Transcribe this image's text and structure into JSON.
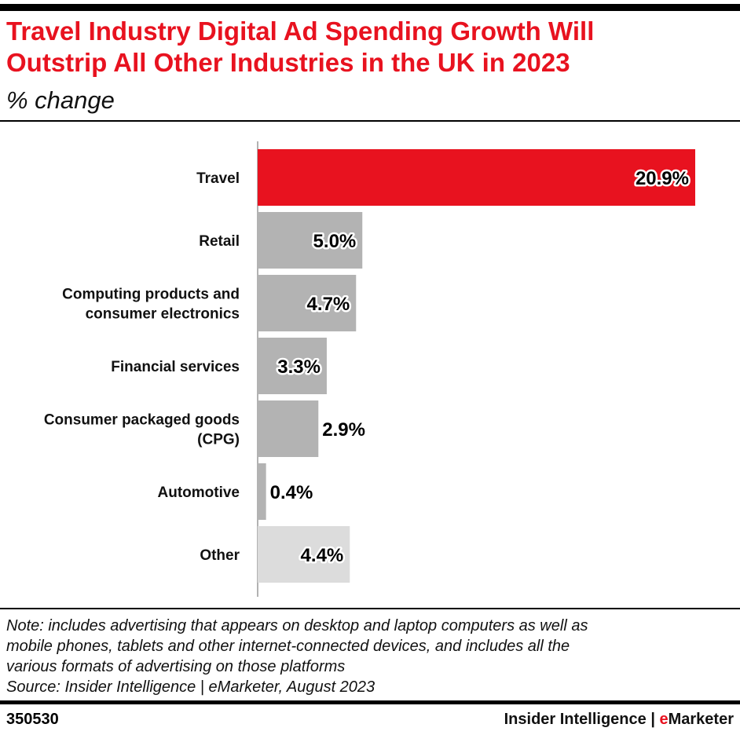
{
  "header": {
    "title_line1": "Travel Industry Digital Ad Spending Growth Will",
    "title_line2": "Outstrip All Other Industries in the UK in 2023",
    "subtitle": "% change"
  },
  "chart_data": {
    "type": "bar",
    "orientation": "horizontal",
    "title": "Travel Industry Digital Ad Spending Growth Will Outstrip All Other Industries in the UK in 2023",
    "subtitle": "% change",
    "categories": [
      [
        "Travel"
      ],
      [
        "Retail"
      ],
      [
        "Computing products and",
        "consumer electronics"
      ],
      [
        "Financial services"
      ],
      [
        "Consumer packaged goods",
        "(CPG)"
      ],
      [
        "Automotive"
      ],
      [
        "Other"
      ]
    ],
    "values": [
      20.9,
      5.0,
      4.7,
      3.3,
      2.9,
      0.4,
      4.4
    ],
    "value_labels": [
      "20.9%",
      "5.0%",
      "4.7%",
      "3.3%",
      "2.9%",
      "0.4%",
      "4.4%"
    ],
    "colors": [
      "#e8121f",
      "#b3b3b3",
      "#b3b3b3",
      "#b3b3b3",
      "#b3b3b3",
      "#b3b3b3",
      "#dcdcdc"
    ],
    "xlim": [
      0,
      20.9
    ],
    "grid": false,
    "legend": "none"
  },
  "footer": {
    "note_lines": [
      "Note: includes advertising that appears on desktop and laptop computers as well as",
      "mobile phones, tablets and other internet-connected devices, and includes all the",
      "various formats of advertising on those platforms"
    ],
    "source": "Source: Insider Intelligence | eMarketer, August 2023",
    "chart_id": "350530",
    "brand_main": "Insider Intelligence | ",
    "brand_e": "e",
    "brand_rest": "Marketer"
  }
}
